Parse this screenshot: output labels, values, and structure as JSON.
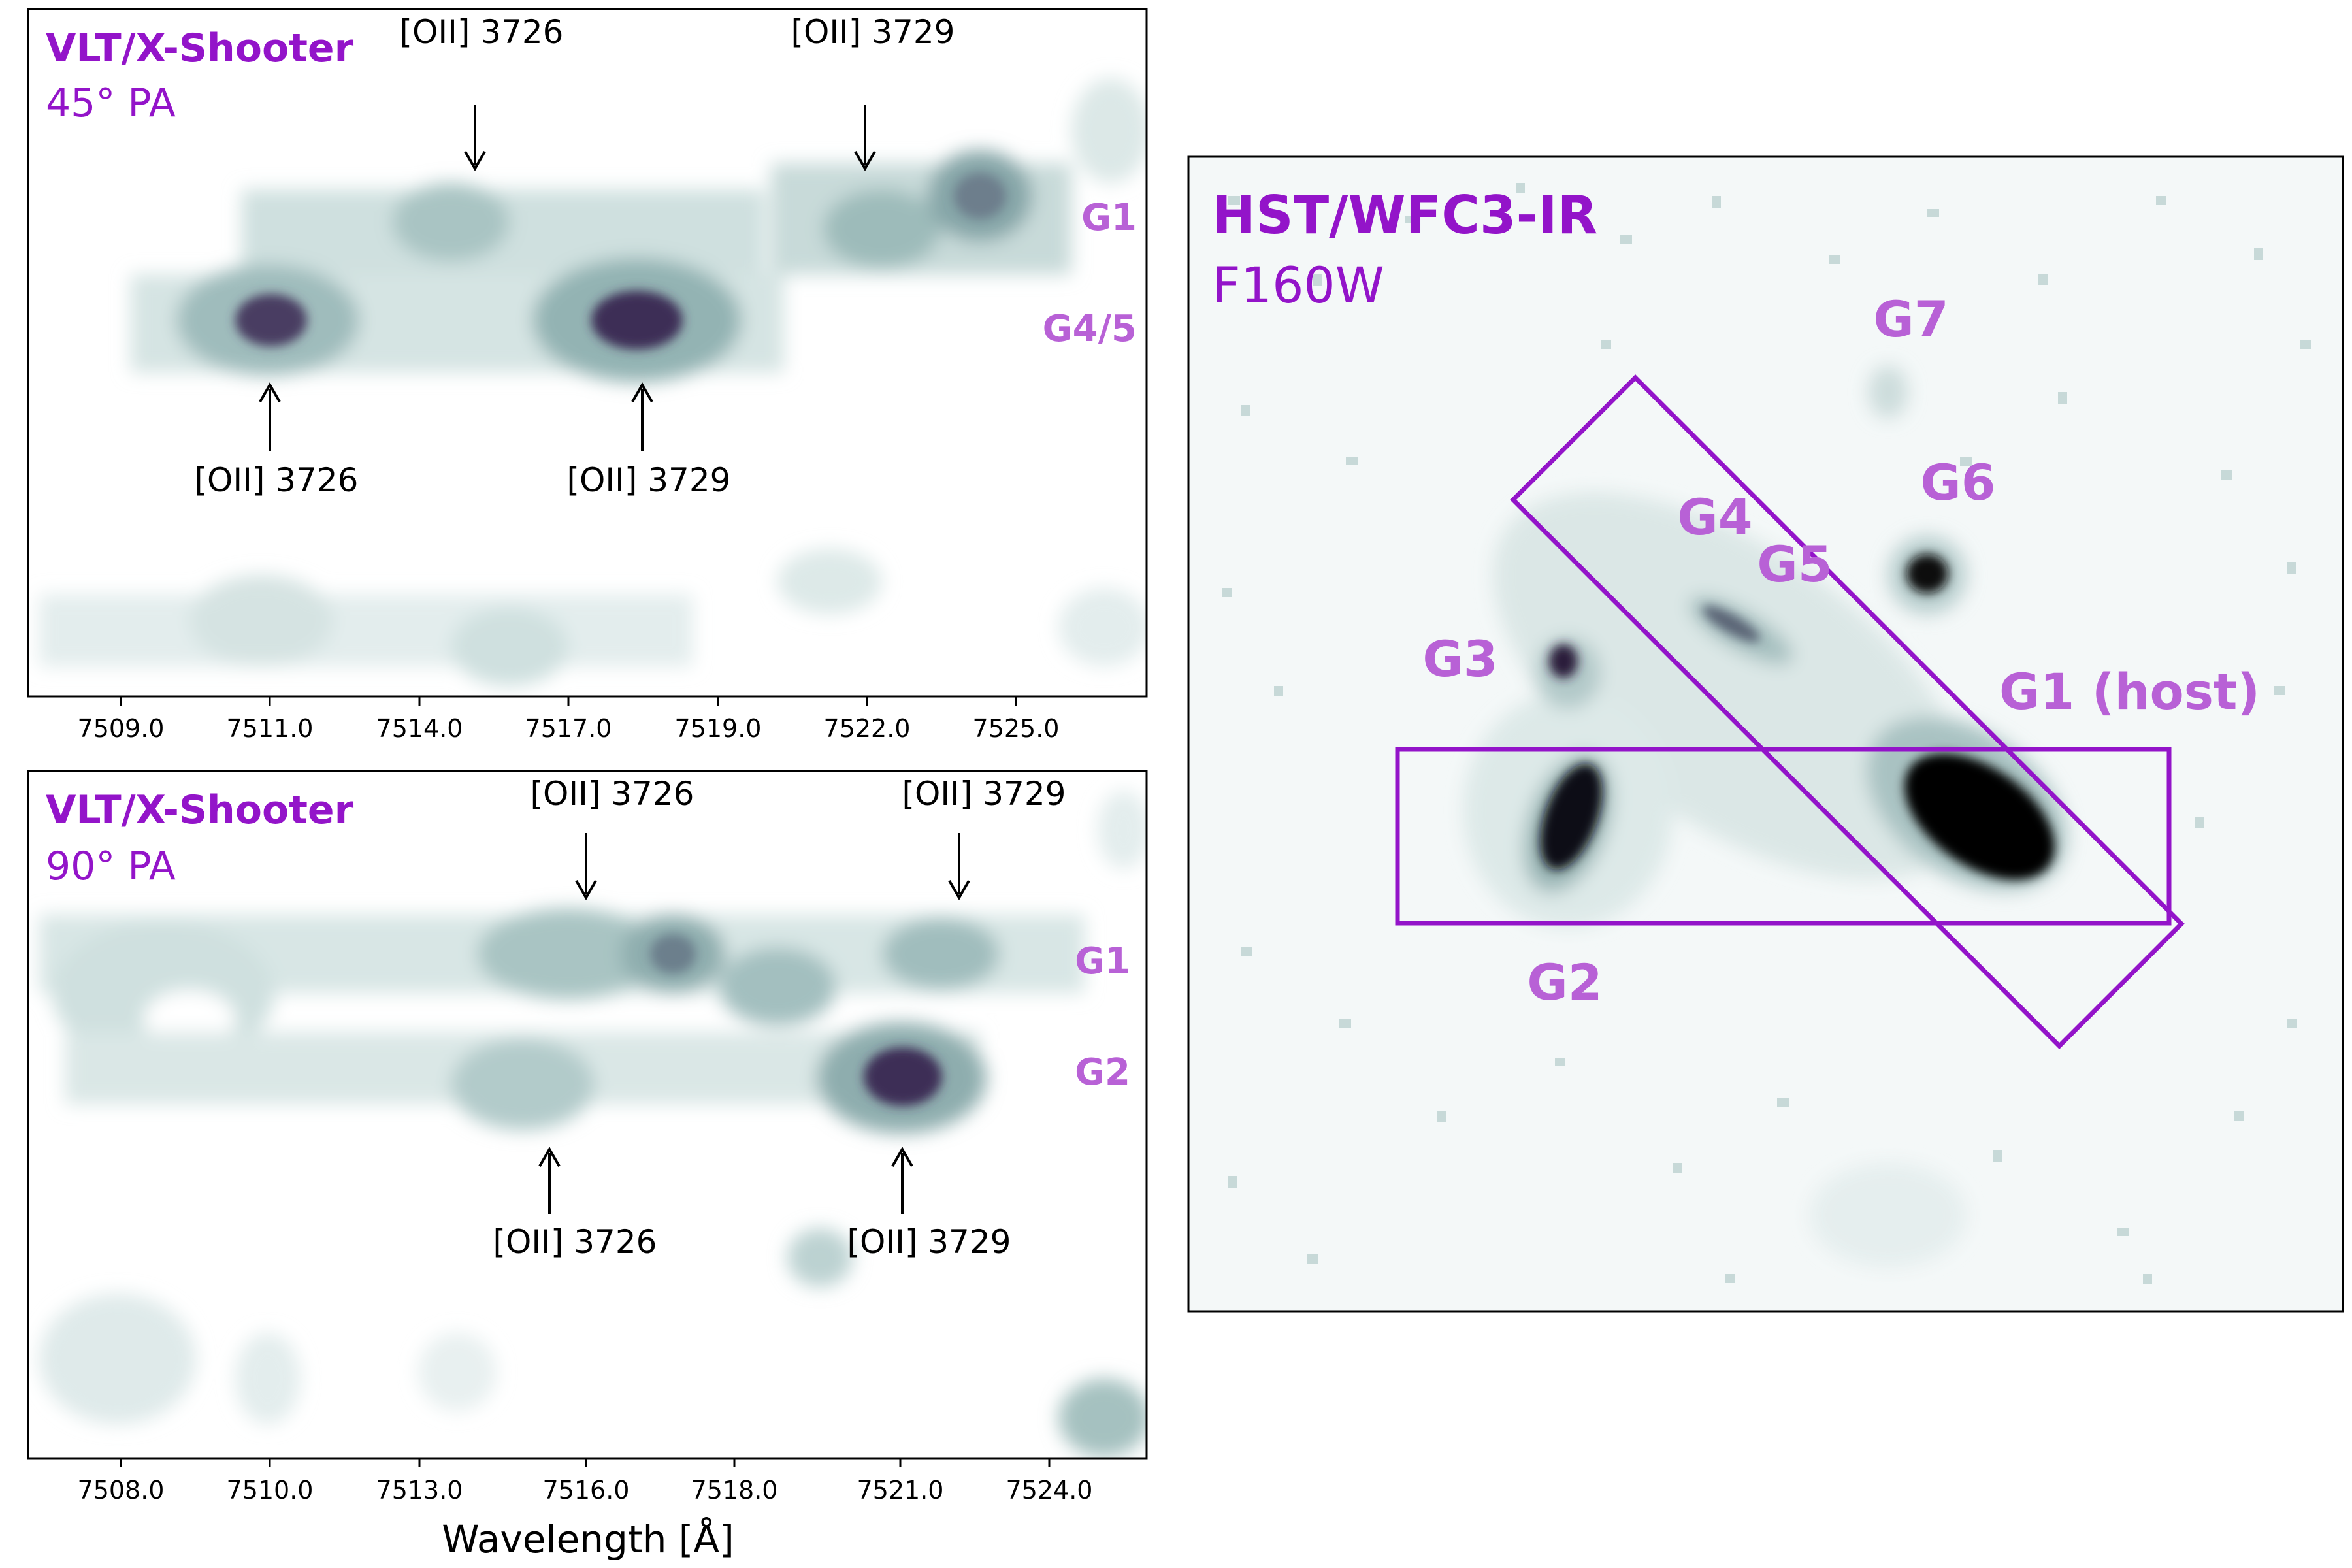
{
  "colors": {
    "label_purple": "#9314c9",
    "tag_purple": "#b861d6",
    "map_light": "#dfeceb",
    "map_mid": "#93b5b4",
    "map_dark": "#3e2f57",
    "arrow": "#000000"
  },
  "panels": {
    "top_spectrum": {
      "instrument": "VLT/X-Shooter",
      "pa": "45° PA",
      "x_ticks": [
        "7509.0",
        "7511.0",
        "7514.0",
        "7517.0",
        "7519.0",
        "7522.0",
        "7525.0"
      ],
      "upper_arrows": [
        {
          "label": "[OII] 3726",
          "wavelength": 7515.0
        },
        {
          "label": "[OII] 3729",
          "wavelength": 7521.0
        }
      ],
      "lower_arrows": [
        {
          "label": "[OII] 3726",
          "wavelength": 7511.2
        },
        {
          "label": "[OII] 3729",
          "wavelength": 7517.6
        }
      ],
      "rows": [
        "G1",
        "G4/5"
      ]
    },
    "bottom_spectrum": {
      "instrument": "VLT/X-Shooter",
      "pa": "90° PA",
      "x_ticks": [
        "7508.0",
        "7510.0",
        "7513.0",
        "7516.0",
        "7518.0",
        "7521.0",
        "7524.0"
      ],
      "x_label": "Wavelength [Å]",
      "upper_arrows": [
        {
          "label": "[OII] 3726",
          "wavelength": 7516.0
        },
        {
          "label": "[OII] 3729",
          "wavelength": 7521.6
        }
      ],
      "lower_arrows": [
        {
          "label": "[OII] 3726",
          "wavelength": 7515.3
        },
        {
          "label": "[OII] 3729",
          "wavelength": 7520.6
        }
      ],
      "rows": [
        "G1",
        "G2"
      ]
    },
    "image": {
      "instrument": "HST/WFC3-IR",
      "filter": "F160W",
      "galaxies": [
        "G7",
        "G6",
        "G4",
        "G5",
        "G3",
        "G1 (host)",
        "G2"
      ]
    }
  }
}
